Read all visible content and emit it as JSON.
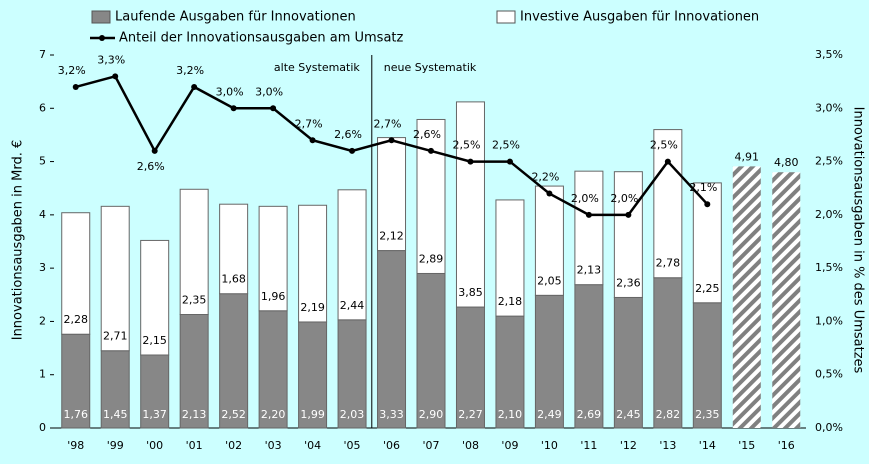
{
  "chart_data": {
    "type": "bar",
    "stacked": true,
    "categories": [
      "'98",
      "'99",
      "'00",
      "'01",
      "'02",
      "'03",
      "'04",
      "'05",
      "'06",
      "'07",
      "'08",
      "'09",
      "'10",
      "'11",
      "'12",
      "'13",
      "'14",
      "'15",
      "'16"
    ],
    "series": [
      {
        "name": "Laufende Ausgaben für Innovationen",
        "color": "#878787",
        "values": [
          1.76,
          1.45,
          1.37,
          2.13,
          2.52,
          2.2,
          1.99,
          2.03,
          3.33,
          2.9,
          2.27,
          2.1,
          2.49,
          2.69,
          2.45,
          2.82,
          2.35,
          null,
          null
        ],
        "value_labels": [
          "1,76",
          "1,45",
          "1,37",
          "2,13",
          "2,52",
          "2,20",
          "1,99",
          "2,03",
          "3,33",
          "2,90",
          "2,27",
          "2,10",
          "2,49",
          "2,69",
          "2,45",
          "2,82",
          "2,35",
          null,
          null
        ]
      },
      {
        "name": "Investive Ausgaben für Innovationen",
        "color": "#ffffff",
        "values": [
          2.28,
          2.71,
          2.15,
          2.35,
          1.68,
          1.96,
          2.19,
          2.44,
          2.12,
          2.89,
          3.85,
          2.18,
          2.05,
          2.13,
          2.36,
          2.78,
          2.25,
          null,
          null
        ],
        "value_labels": [
          "2,28",
          "2,71",
          "2,15",
          "2,35",
          "1,68",
          "1,96",
          "2,19",
          "2,44",
          "2,12",
          "2,89",
          "3,85",
          "2,18",
          "2,05",
          "2,13",
          "2,36",
          "2,78",
          "2,25",
          null,
          null
        ]
      },
      {
        "color": "#808080",
        "pattern": "hatch",
        "values": [
          null,
          null,
          null,
          null,
          null,
          null,
          null,
          null,
          null,
          null,
          null,
          null,
          null,
          null,
          null,
          null,
          null,
          4.91,
          4.8
        ],
        "value_labels": [
          null,
          null,
          null,
          null,
          null,
          null,
          null,
          null,
          null,
          null,
          null,
          null,
          null,
          null,
          null,
          null,
          null,
          "4,91",
          "4,80"
        ]
      },
      {
        "name": "Anteil der Innovationsausgaben am Umsatz",
        "type": "line",
        "axis": "y2",
        "color": "#000000",
        "values": [
          3.2,
          3.3,
          2.6,
          3.2,
          3.0,
          3.0,
          2.7,
          2.6,
          2.7,
          2.6,
          2.5,
          2.5,
          2.2,
          2.0,
          2.0,
          2.5,
          2.1,
          null,
          null
        ],
        "value_labels": [
          "3,2%",
          "3,3%",
          "2,6%",
          "3,2%",
          "3,0%",
          "3,0%",
          "2,7%",
          "2,6%",
          "2,7%",
          "2,6%",
          "2,5%",
          "2,5%",
          "2,2%",
          "2,0%",
          "2,0%",
          "2,5%",
          "2,1%",
          null,
          null
        ]
      }
    ],
    "ylabel": "Innovationsausgaben in Mrd. €",
    "y2label": "Innovationsausgaben in % des Umsatzes",
    "ylim": [
      0,
      7
    ],
    "yticks": [
      0,
      1,
      2,
      3,
      4,
      5,
      6,
      7
    ],
    "y2lim": [
      0,
      3.5
    ],
    "y2ticks": [
      {
        "value": 0,
        "label": "0,0%"
      },
      {
        "value": 0.5,
        "label": "0,5%"
      },
      {
        "value": 1,
        "label": "1,0%"
      },
      {
        "value": 1.5,
        "label": "1,5%"
      },
      {
        "value": 2,
        "label": "2,0%"
      },
      {
        "value": 2.5,
        "label": "2,5%"
      },
      {
        "value": 3,
        "label": "3,0%"
      },
      {
        "value": 3.5,
        "label": "3,5%"
      }
    ],
    "annotations": [
      "alte Systematik",
      "neue Systematik"
    ]
  }
}
